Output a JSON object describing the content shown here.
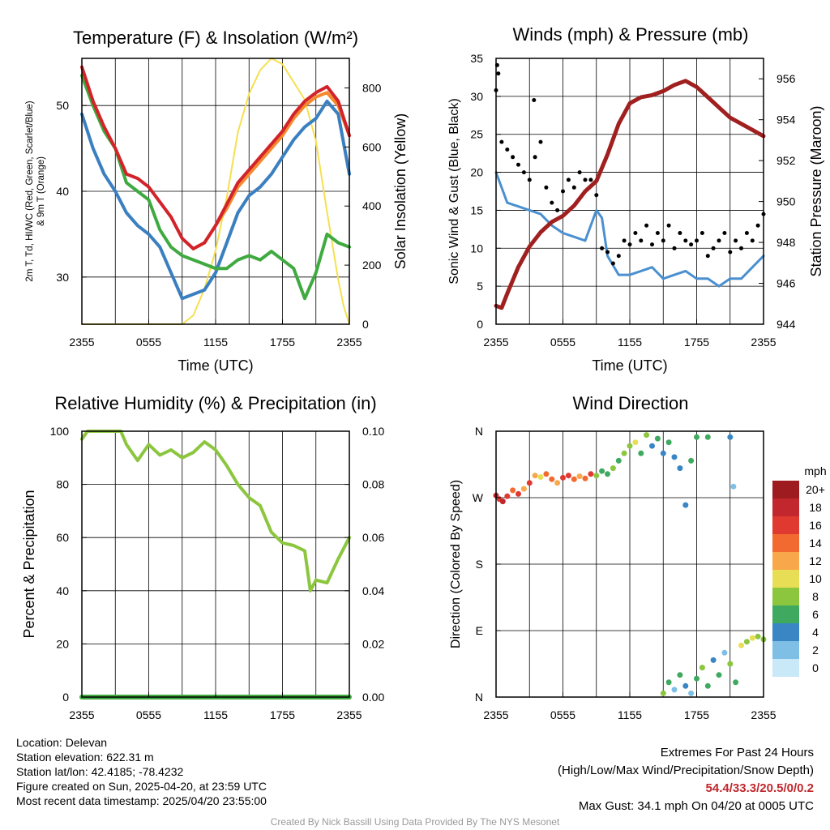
{
  "chart_data": [
    {
      "type": "line",
      "title": "Temperature (F) & Insolation (W/m²)",
      "xlabel": "Time (UTC)",
      "ylabel": "2m T, Td, HI/WC (Red, Green, Scarlet/Blue) & 9m T (Orange)",
      "ylabel_line1": "2m T, Td, HI/WC (Red, Green, Scarlet/Blue)",
      "ylabel_line2": "& 9m T (Orange)",
      "y2label": "Solar Insolation (Yellow)",
      "xticks": [
        "2355",
        "0555",
        "1155",
        "1755",
        "2355"
      ],
      "ylim": [
        24.5,
        55.5
      ],
      "yticks": [
        30,
        40,
        50
      ],
      "y2lim": [
        0,
        900
      ],
      "y2ticks": [
        0,
        200,
        400,
        600,
        800
      ],
      "grid": true,
      "series": [
        {
          "name": "2m T",
          "color": "#d2232a",
          "axis": "left",
          "x": [
            0,
            1,
            2,
            3,
            4,
            5,
            6,
            8,
            9,
            10,
            11,
            12,
            13,
            14,
            15,
            16,
            17,
            18,
            19,
            20,
            21,
            22,
            23,
            24
          ],
          "values": [
            54.5,
            50.5,
            47.5,
            45,
            42,
            41.5,
            40.5,
            37,
            34.5,
            33.3,
            34,
            36,
            38.5,
            41,
            42.5,
            44,
            45.5,
            47,
            49,
            50.5,
            51.5,
            52.2,
            50.5,
            46.5
          ]
        },
        {
          "name": "9m T",
          "color": "#f58a2d",
          "axis": "left",
          "x": [
            10,
            11,
            12,
            13,
            14,
            15,
            16,
            17,
            18,
            19,
            20,
            21,
            22,
            23,
            24
          ],
          "values": [
            33.3,
            34,
            36,
            38,
            40.5,
            42,
            43.5,
            45,
            46.5,
            48.5,
            50,
            51,
            51.5,
            50,
            46.5
          ]
        },
        {
          "name": "Td",
          "color": "#3faa3f",
          "axis": "left",
          "x": [
            0,
            1,
            2,
            3,
            3.5,
            4,
            5,
            6,
            7,
            8,
            9,
            10,
            11,
            12,
            13,
            14,
            15,
            16,
            17,
            18,
            19,
            20,
            21,
            22,
            23,
            24
          ],
          "values": [
            53.5,
            50,
            47,
            45,
            43,
            41,
            40,
            39,
            35.5,
            33.5,
            32.5,
            32,
            31.5,
            31,
            31,
            32,
            32.5,
            32,
            33,
            32,
            31,
            27.5,
            30.5,
            35,
            34,
            33.5
          ]
        },
        {
          "name": "HI/WC",
          "color": "#3a7fc0",
          "axis": "left",
          "x": [
            0,
            1,
            2,
            3,
            4,
            5,
            6,
            7,
            8,
            9,
            10,
            11,
            12,
            13,
            14,
            15,
            16,
            17,
            18,
            19,
            20,
            21,
            22,
            23,
            24
          ],
          "values": [
            49,
            45,
            42,
            40,
            37.5,
            36,
            35,
            33.5,
            30.5,
            27.5,
            28,
            28.5,
            30.5,
            34,
            37.5,
            39.5,
            40.5,
            42,
            44,
            46,
            47.5,
            48.5,
            50.5,
            49,
            42
          ]
        },
        {
          "name": "Solar Insolation",
          "color": "#f5e050",
          "axis": "right",
          "x": [
            0,
            9,
            10,
            11,
            12,
            13,
            14,
            15,
            16,
            17,
            18,
            19,
            20,
            21,
            22,
            23,
            23.5,
            24
          ],
          "values": [
            0,
            0,
            30,
            120,
            250,
            430,
            650,
            780,
            860,
            900,
            880,
            820,
            760,
            620,
            380,
            150,
            60,
            0
          ]
        }
      ]
    },
    {
      "type": "line",
      "title": "Winds (mph) & Pressure (mb)",
      "xlabel": "Time (UTC)",
      "ylabel": "Sonic Wind & Gust (Blue, Black)",
      "y2label": "Station Pressure (Maroon)",
      "xticks": [
        "2355",
        "0555",
        "1155",
        "1755",
        "2355"
      ],
      "ylim": [
        0,
        35
      ],
      "yticks": [
        0,
        5,
        10,
        15,
        20,
        25,
        30,
        35
      ],
      "y2lim": [
        944,
        957
      ],
      "y2ticks": [
        944,
        946,
        948,
        950,
        952,
        954,
        956
      ],
      "grid": true,
      "series": [
        {
          "name": "Sonic Wind",
          "color": "#4a90d0",
          "axis": "left",
          "x": [
            0,
            1,
            2,
            3,
            4,
            5,
            6,
            7,
            8,
            9,
            9.5,
            10,
            11,
            12,
            13,
            14,
            15,
            16,
            17,
            18,
            19,
            20,
            21,
            22,
            23,
            24
          ],
          "values": [
            20,
            16,
            15.5,
            15,
            14.5,
            13,
            12,
            11.5,
            11,
            15,
            14,
            9,
            6.5,
            6.5,
            7,
            7.5,
            6,
            6.5,
            7,
            6,
            6,
            5,
            6,
            6,
            7.5,
            9
          ]
        },
        {
          "name": "Gust",
          "color": "#000000",
          "axis": "left",
          "points": true,
          "x": [
            0,
            0.1,
            0.2,
            0.5,
            1,
            1.5,
            2,
            2.5,
            3,
            3.4,
            3.5,
            4,
            4.5,
            5,
            5.5,
            6,
            6.5,
            7,
            7.5,
            8,
            8.5,
            9,
            9.5,
            10,
            10.5,
            11,
            11.5,
            12,
            12.5,
            13,
            13.5,
            14,
            14.5,
            15,
            15.5,
            16,
            16.5,
            17,
            17.5,
            18,
            18.5,
            19,
            19.5,
            20,
            20.5,
            21,
            21.5,
            22,
            22.5,
            23,
            23.5,
            24
          ],
          "values": [
            30.8,
            34.1,
            33,
            24,
            23,
            22,
            21,
            20,
            19,
            29.5,
            22,
            24,
            18,
            16,
            15,
            17.5,
            19,
            18,
            20,
            19,
            19,
            17,
            10,
            9.5,
            8,
            9,
            11,
            10.5,
            12,
            11,
            13,
            10.5,
            12,
            11,
            13,
            10,
            12,
            11,
            10.5,
            11,
            12,
            9,
            10,
            11,
            12,
            9.5,
            11,
            10,
            12,
            11,
            13,
            14.5
          ]
        },
        {
          "name": "Pressure",
          "color": "#a02020",
          "axis": "right",
          "x": [
            0,
            0.5,
            1,
            2,
            3,
            4,
            5,
            6,
            7,
            8,
            9,
            10,
            11,
            12,
            13,
            14,
            15,
            16,
            17,
            18,
            19,
            20,
            21,
            22,
            23,
            24
          ],
          "values": [
            944.9,
            944.8,
            945.5,
            946.8,
            947.8,
            948.5,
            949,
            949.3,
            949.8,
            950.5,
            951,
            952.3,
            953.8,
            954.8,
            955.1,
            955.2,
            955.4,
            955.7,
            955.9,
            955.6,
            955.1,
            954.6,
            954.1,
            953.8,
            953.5,
            953.2
          ]
        }
      ]
    },
    {
      "type": "line",
      "title": "Relative Humidity (%) & Precipitation (in)",
      "xlabel": "",
      "ylabel": "Percent & Precipitation",
      "xticks": [
        "2355",
        "0555",
        "1155",
        "1755",
        "2355"
      ],
      "ylim": [
        0,
        100
      ],
      "yticks": [
        0,
        20,
        40,
        60,
        80,
        100
      ],
      "y2lim": [
        0,
        0.1
      ],
      "y2ticks": [
        "0.00",
        "0.02",
        "0.04",
        "0.06",
        "0.08",
        "0.10"
      ],
      "grid": true,
      "series": [
        {
          "name": "Relative Humidity",
          "color": "#8cc63f",
          "axis": "left",
          "x": [
            0,
            0.5,
            3.5,
            4,
            5,
            6,
            7,
            8,
            9,
            10,
            11,
            12,
            13,
            14,
            15,
            16,
            17,
            18,
            19,
            20,
            20.5,
            21,
            22,
            23,
            24
          ],
          "values": [
            97,
            100,
            100,
            95,
            89,
            95,
            91,
            93,
            90,
            92,
            96,
            93,
            87,
            80,
            75,
            72,
            62,
            58,
            57,
            55,
            40,
            44,
            43,
            52,
            60
          ]
        },
        {
          "name": "Precipitation",
          "color": "#3faa3f",
          "axis": "right",
          "x": [
            0,
            24
          ],
          "values": [
            0,
            0
          ]
        }
      ]
    },
    {
      "type": "scatter",
      "title": "Wind Direction",
      "ylabel": "Direction (Colored By Speed)",
      "xticks": [
        "2355",
        "0555",
        "1155",
        "1755",
        "2355"
      ],
      "yticks": [
        "N",
        "E",
        "S",
        "W",
        "N"
      ],
      "ylim": [
        0,
        360
      ],
      "grid": true,
      "points": [
        {
          "x": 0,
          "dir": 273,
          "mph": 18
        },
        {
          "x": 0.3,
          "dir": 268,
          "mph": 17
        },
        {
          "x": 0.6,
          "dir": 265,
          "mph": 18
        },
        {
          "x": 1,
          "dir": 272,
          "mph": 16
        },
        {
          "x": 1.5,
          "dir": 280,
          "mph": 15
        },
        {
          "x": 2,
          "dir": 275,
          "mph": 17
        },
        {
          "x": 2.5,
          "dir": 282,
          "mph": 13
        },
        {
          "x": 3,
          "dir": 290,
          "mph": 16
        },
        {
          "x": 3.5,
          "dir": 300,
          "mph": 12
        },
        {
          "x": 4,
          "dir": 298,
          "mph": 11
        },
        {
          "x": 4.5,
          "dir": 302,
          "mph": 15
        },
        {
          "x": 5,
          "dir": 295,
          "mph": 14
        },
        {
          "x": 5.5,
          "dir": 290,
          "mph": 12
        },
        {
          "x": 6,
          "dir": 297,
          "mph": 16
        },
        {
          "x": 6.5,
          "dir": 300,
          "mph": 17
        },
        {
          "x": 7,
          "dir": 295,
          "mph": 15
        },
        {
          "x": 7.5,
          "dir": 299,
          "mph": 12
        },
        {
          "x": 8,
          "dir": 296,
          "mph": 14
        },
        {
          "x": 8.5,
          "dir": 302,
          "mph": 16
        },
        {
          "x": 9,
          "dir": 300,
          "mph": 8
        },
        {
          "x": 9.5,
          "dir": 306,
          "mph": 7
        },
        {
          "x": 10,
          "dir": 302,
          "mph": 6
        },
        {
          "x": 10.5,
          "dir": 310,
          "mph": 8
        },
        {
          "x": 11,
          "dir": 320,
          "mph": 7
        },
        {
          "x": 11.5,
          "dir": 330,
          "mph": 9
        },
        {
          "x": 12,
          "dir": 340,
          "mph": 8
        },
        {
          "x": 12.5,
          "dir": 345,
          "mph": 10
        },
        {
          "x": 13,
          "dir": 330,
          "mph": 6
        },
        {
          "x": 13.5,
          "dir": 355,
          "mph": 9
        },
        {
          "x": 14,
          "dir": 340,
          "mph": 4
        },
        {
          "x": 14.5,
          "dir": 350,
          "mph": 7
        },
        {
          "x": 15,
          "dir": 330,
          "mph": 5
        },
        {
          "x": 15.5,
          "dir": 345,
          "mph": 6
        },
        {
          "x": 16,
          "dir": 325,
          "mph": 4
        },
        {
          "x": 16.5,
          "dir": 310,
          "mph": 5
        },
        {
          "x": 17,
          "dir": 260,
          "mph": 4
        },
        {
          "x": 17.5,
          "dir": 320,
          "mph": 6
        },
        {
          "x": 18,
          "dir": 352,
          "mph": 7
        },
        {
          "x": 19,
          "dir": 352,
          "mph": 6
        },
        {
          "x": 21,
          "dir": 352,
          "mph": 4
        },
        {
          "x": 21.3,
          "dir": 285,
          "mph": 2
        },
        {
          "x": 15,
          "dir": 5,
          "mph": 8
        },
        {
          "x": 15.5,
          "dir": 20,
          "mph": 6
        },
        {
          "x": 16,
          "dir": 10,
          "mph": 2
        },
        {
          "x": 16.5,
          "dir": 30,
          "mph": 6
        },
        {
          "x": 17,
          "dir": 15,
          "mph": 5
        },
        {
          "x": 17.5,
          "dir": 5,
          "mph": 3
        },
        {
          "x": 18,
          "dir": 25,
          "mph": 7
        },
        {
          "x": 18.5,
          "dir": 40,
          "mph": 8
        },
        {
          "x": 19,
          "dir": 15,
          "mph": 6
        },
        {
          "x": 19.5,
          "dir": 50,
          "mph": 4
        },
        {
          "x": 20,
          "dir": 30,
          "mph": 6
        },
        {
          "x": 20.5,
          "dir": 60,
          "mph": 2
        },
        {
          "x": 21,
          "dir": 45,
          "mph": 8
        },
        {
          "x": 21.5,
          "dir": 20,
          "mph": 6
        },
        {
          "x": 22,
          "dir": 70,
          "mph": 10
        },
        {
          "x": 22.5,
          "dir": 75,
          "mph": 8
        },
        {
          "x": 23,
          "dir": 80,
          "mph": 10
        },
        {
          "x": 23.5,
          "dir": 82,
          "mph": 9
        },
        {
          "x": 24,
          "dir": 78,
          "mph": 8
        }
      ],
      "colorbar": {
        "label": "mph",
        "labels": [
          "20+",
          "18",
          "16",
          "14",
          "12",
          "10",
          "8",
          "6",
          "4",
          "2",
          "0"
        ],
        "colors": [
          "#9e1b1f",
          "#c1272d",
          "#e03a30",
          "#f26a2f",
          "#f8a84a",
          "#e8de56",
          "#8cc63f",
          "#3faa5f",
          "#3a86c4",
          "#7fbfe6",
          "#c9e8f8"
        ]
      }
    }
  ],
  "info": {
    "location": "Location: Delevan",
    "elevation": "Station elevation: 622.31 m",
    "latlon": "Station lat/lon: 42.4185; -78.4232",
    "created": "Figure created on Sun, 2025-04-20, at 23:59 UTC",
    "recent": "Most recent data timestamp: 2025/04/20 23:55:00",
    "extremes_title": "Extremes For Past 24 Hours",
    "extremes_legend": "(High/Low/Max Wind/Precipitation/Snow Depth)",
    "extremes_values": "54.4/33.3/20.5/0/0.2",
    "max_gust": "Max Gust: 34.1 mph On 04/20 at 0005 UTC",
    "credit": "Created By Nick Bassill Using Data Provided By The NYS Mesonet"
  }
}
